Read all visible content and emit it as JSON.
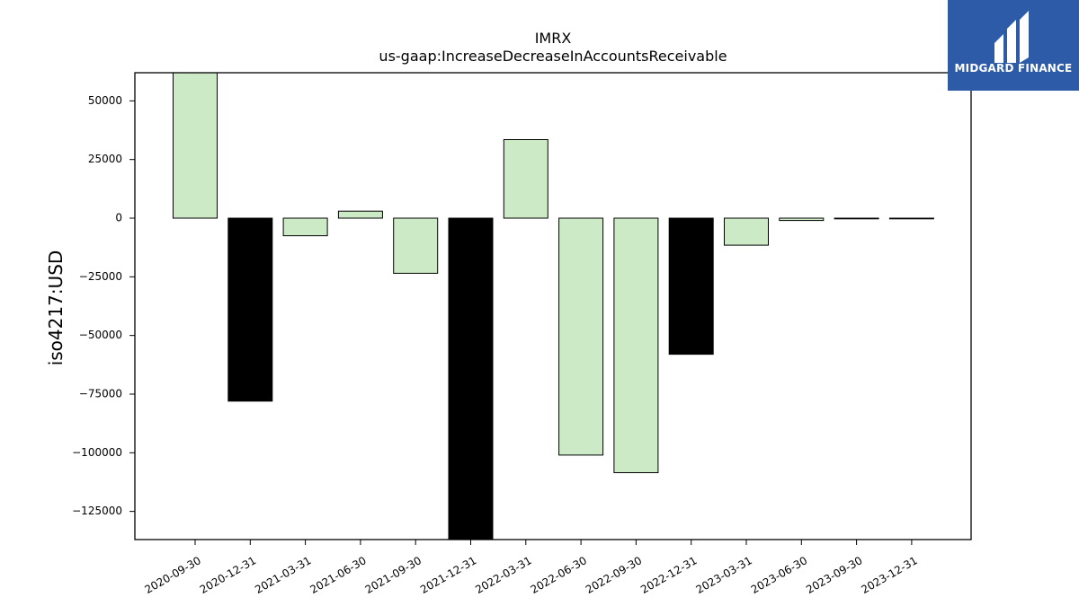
{
  "chart_data": {
    "type": "bar",
    "title": "IMRX",
    "subtitle": "us-gaap:IncreaseDecreaseInAccountsReceivable",
    "xlabel": "",
    "ylabel": "iso4217:USD",
    "categories": [
      "2020-09-30",
      "2020-12-31",
      "2021-03-31",
      "2021-06-30",
      "2021-09-30",
      "2021-12-31",
      "2022-03-31",
      "2022-06-30",
      "2022-09-30",
      "2022-12-31",
      "2023-03-31",
      "2023-06-30",
      "2023-09-30",
      "2023-12-31"
    ],
    "values": [
      62000,
      -78000,
      -7500,
      3000,
      -23500,
      -137000,
      33500,
      -101000,
      -108500,
      -58000,
      -11500,
      -1000,
      0,
      0
    ],
    "bar_colors": [
      "#cdeac6",
      "#000000",
      "#cdeac6",
      "#cdeac6",
      "#cdeac6",
      "#000000",
      "#cdeac6",
      "#cdeac6",
      "#cdeac6",
      "#000000",
      "#cdeac6",
      "#cdeac6",
      "#cdeac6",
      "#cdeac6"
    ],
    "ylim": [
      -137000,
      62000
    ],
    "yticks": [
      50000,
      25000,
      0,
      -25000,
      -50000,
      -75000,
      -100000,
      -125000
    ],
    "ytick_labels": [
      "50000",
      "25000",
      "0",
      "−25000",
      "−50000",
      "−75000",
      "−100000",
      "−125000"
    ],
    "grid": false,
    "legend": "none"
  },
  "logo": {
    "text": "MIDGARD FINANCE",
    "background": "#2d5ba8"
  }
}
